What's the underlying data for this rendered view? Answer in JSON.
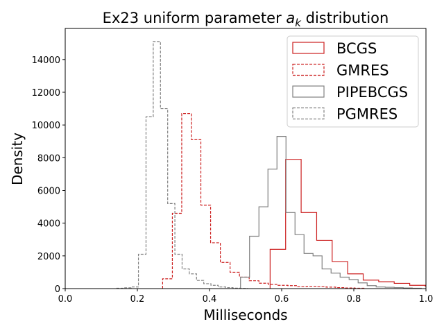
{
  "chart_data": {
    "type": "histogram-step",
    "title_prefix": "Ex23 uniform parameter ",
    "title_var": "a",
    "title_sub": "k",
    "title_suffix": " distribution",
    "xlabel": "Milliseconds",
    "ylabel": "Density",
    "xlim": [
      0.0,
      1.0
    ],
    "ylim": [
      0,
      15900
    ],
    "xticks": [
      0.0,
      0.2,
      0.4,
      0.6,
      0.8,
      1.0
    ],
    "xtick_labels": [
      "0.0",
      "0.2",
      "0.4",
      "0.6",
      "0.8",
      "1.0"
    ],
    "yticks": [
      0,
      2000,
      4000,
      6000,
      8000,
      10000,
      12000,
      14000
    ],
    "ytick_labels": [
      "0",
      "2000",
      "4000",
      "6000",
      "8000",
      "10000",
      "12000",
      "14000"
    ],
    "legend_position": "top-right",
    "colors": {
      "red": "#cc1f1f",
      "gray": "#808080"
    },
    "series": [
      {
        "name": "BCGS",
        "color": "#cc1f1f",
        "dashed": false,
        "edges": [
          0.568,
          0.611,
          0.654,
          0.697,
          0.74,
          0.783,
          0.826,
          0.869,
          0.912,
          0.955,
          0.998,
          1.03
        ],
        "values": [
          2400,
          7900,
          4650,
          2950,
          1650,
          900,
          520,
          420,
          320,
          200,
          150
        ]
      },
      {
        "name": "GMRES",
        "color": "#cc1f1f",
        "dashed": false,
        "dashed_style": true,
        "edges": [
          0.27,
          0.297,
          0.323,
          0.35,
          0.376,
          0.403,
          0.43,
          0.457,
          0.483,
          0.51,
          0.537,
          0.563,
          0.59,
          0.617,
          0.643,
          0.67,
          0.697,
          0.723,
          0.75,
          0.777,
          0.803,
          0.83
        ],
        "values": [
          600,
          4600,
          10700,
          9100,
          5100,
          2800,
          1600,
          1000,
          700,
          480,
          330,
          260,
          200,
          180,
          120,
          140,
          120,
          90,
          60,
          40,
          20
        ]
      },
      {
        "name": "PIPEBCGS",
        "color": "#808080",
        "dashed": false,
        "edges": [
          0.486,
          0.511,
          0.537,
          0.562,
          0.587,
          0.612,
          0.637,
          0.662,
          0.687,
          0.712,
          0.737,
          0.762,
          0.787,
          0.812,
          0.837,
          0.862,
          0.887,
          0.912,
          0.937,
          0.962,
          0.987
        ],
        "values": [
          700,
          3200,
          5000,
          7300,
          9300,
          4650,
          3300,
          2150,
          2000,
          1200,
          950,
          700,
          550,
          350,
          180,
          100,
          80,
          60,
          40,
          20
        ]
      },
      {
        "name": "PGMRES",
        "color": "#808080",
        "dashed": true,
        "edges": [
          0.143,
          0.163,
          0.183,
          0.203,
          0.224,
          0.244,
          0.264,
          0.284,
          0.304,
          0.324,
          0.344,
          0.364,
          0.384,
          0.404,
          0.424,
          0.445,
          0.465,
          0.485,
          0.505
        ],
        "values": [
          20,
          50,
          100,
          2100,
          10500,
          15100,
          11000,
          5200,
          2100,
          1200,
          900,
          500,
          300,
          200,
          100,
          60,
          30,
          10
        ]
      }
    ]
  }
}
